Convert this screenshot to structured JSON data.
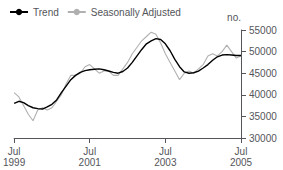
{
  "chart_data": {
    "type": "line",
    "y_label": "no.",
    "categories": [
      "Jul\n1999",
      null,
      null,
      null,
      null,
      null,
      null,
      null,
      null,
      null,
      null,
      null,
      null,
      null,
      null,
      null,
      "Jul\n2001",
      null,
      null,
      null,
      null,
      null,
      null,
      null,
      null,
      null,
      null,
      null,
      null,
      null,
      null,
      null,
      "Jul\n2003",
      null,
      null,
      null,
      null,
      null,
      null,
      null,
      null,
      null,
      null,
      null,
      null,
      null,
      null,
      null,
      "Jul\n2005"
    ],
    "series": [
      {
        "name": "Trend",
        "color": "#000000",
        "values": [
          38000,
          38500,
          38200,
          37500,
          37000,
          36800,
          36700,
          37200,
          37800,
          38800,
          40500,
          42000,
          43500,
          44500,
          45200,
          45600,
          45800,
          45900,
          46000,
          45800,
          45500,
          45200,
          45000,
          45400,
          46200,
          47500,
          49000,
          50500,
          51800,
          52500,
          53000,
          52800,
          51800,
          50200,
          48200,
          46500,
          45300,
          45000,
          45100,
          45500,
          46200,
          47000,
          48000,
          48800,
          49200,
          49300,
          49200,
          49100,
          49100
        ]
      },
      {
        "name": "Seasonally Adjusted",
        "color": "#b0b0b0",
        "values": [
          40500,
          39500,
          37500,
          35500,
          34000,
          36500,
          37000,
          36500,
          37000,
          38500,
          40000,
          42500,
          44500,
          44500,
          45000,
          46500,
          47000,
          46000,
          45000,
          45500,
          45500,
          44500,
          44500,
          46000,
          47500,
          49500,
          51000,
          52500,
          53500,
          54500,
          54000,
          52000,
          49500,
          47500,
          45500,
          43500,
          45000,
          45500,
          45000,
          46000,
          47000,
          49000,
          49500,
          49000,
          50000,
          51500,
          50000,
          48500,
          49000
        ]
      }
    ],
    "ylim": [
      30000,
      55000
    ],
    "yticks": [
      30000,
      35000,
      40000,
      45000,
      50000,
      55000
    ],
    "grid": false,
    "legend": "upper left"
  }
}
